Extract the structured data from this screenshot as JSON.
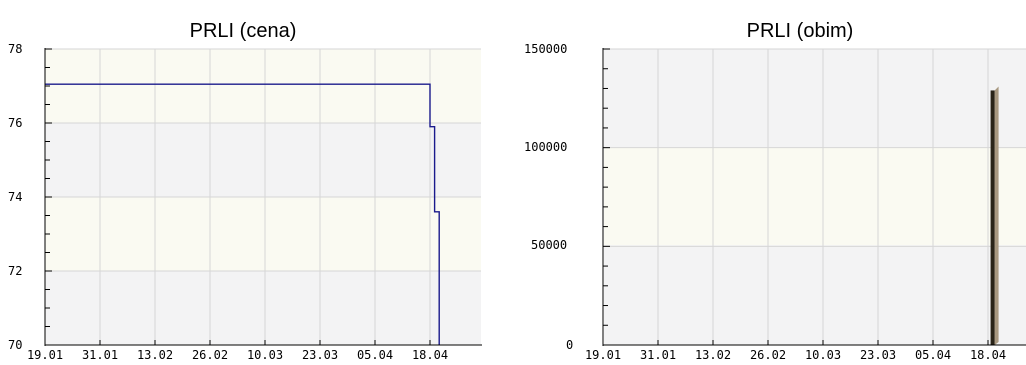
{
  "chart_data": [
    {
      "type": "line",
      "title": "PRLI (cena)",
      "xlabel": "",
      "ylabel": "",
      "x_tick_labels": [
        "19.01",
        "31.01",
        "13.02",
        "26.02",
        "10.03",
        "23.03",
        "05.04",
        "18.04"
      ],
      "y_tick_labels": [
        "70",
        "72",
        "74",
        "76",
        "78"
      ],
      "ylim": [
        70,
        78
      ],
      "grid": true,
      "series": [
        {
          "color": "#1a1a8c",
          "x": [
            "19.01",
            "13.04",
            "13.04",
            "14.04",
            "14.04",
            "15.04",
            "15.04"
          ],
          "y": [
            77.05,
            77.05,
            75.9,
            75.9,
            73.6,
            73.6,
            70
          ]
        }
      ]
    },
    {
      "type": "bar",
      "title": "PRLI (obim)",
      "xlabel": "",
      "ylabel": "",
      "x_tick_labels": [
        "19.01",
        "31.01",
        "13.02",
        "26.02",
        "10.03",
        "23.03",
        "05.04",
        "18.04"
      ],
      "y_tick_labels": [
        "0",
        "50000",
        "100000",
        "150000"
      ],
      "ylim": [
        0,
        150000
      ],
      "grid": true,
      "categories": [
        "14.04"
      ],
      "values": [
        129000
      ],
      "bar_color": "#2a2418",
      "bar_side_color": "#a89880"
    }
  ]
}
